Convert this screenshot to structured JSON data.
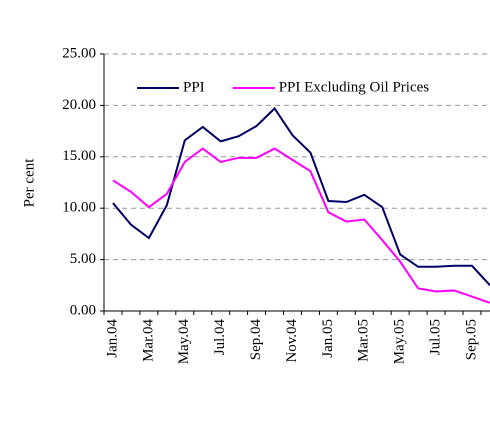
{
  "chart_data": {
    "type": "line",
    "y_label": "Per cent",
    "categories": [
      "Jan.04",
      null,
      "Mar.04",
      null,
      "May.04",
      null,
      "Jul.04",
      null,
      "Sep.04",
      null,
      "Nov.04",
      null,
      "Jan.05",
      null,
      "Mar.05",
      null,
      "May.05",
      null,
      "Jul.05",
      null,
      "Sep.05",
      null
    ],
    "series": [
      {
        "name": "PPI",
        "color": "#000066",
        "values": [
          10.5,
          8.4,
          7.1,
          10.3,
          16.6,
          17.9,
          16.5,
          17.0,
          18.0,
          19.7,
          17.1,
          15.4,
          10.7,
          10.6,
          11.3,
          10.1,
          5.5,
          4.3,
          4.3,
          4.4,
          4.4,
          2.5
        ]
      },
      {
        "name": "PPI Excluding Oil Prices",
        "color": "#ff00ff",
        "values": [
          12.7,
          11.6,
          10.1,
          11.4,
          14.5,
          15.8,
          14.5,
          14.9,
          14.9,
          15.8,
          14.7,
          13.6,
          9.6,
          8.7,
          8.9,
          6.9,
          4.8,
          2.2,
          1.9,
          2.0,
          1.4,
          0.8
        ]
      }
    ],
    "ylim": [
      0,
      25
    ],
    "yticks": [
      {
        "value": 0,
        "label": "0.00"
      },
      {
        "value": 5,
        "label": "5.00"
      },
      {
        "value": 10,
        "label": "10.00"
      },
      {
        "value": 15,
        "label": "15.00"
      },
      {
        "value": 20,
        "label": "20.00"
      },
      {
        "value": 25,
        "label": "25.00"
      }
    ],
    "grid": true,
    "legend": "top"
  }
}
